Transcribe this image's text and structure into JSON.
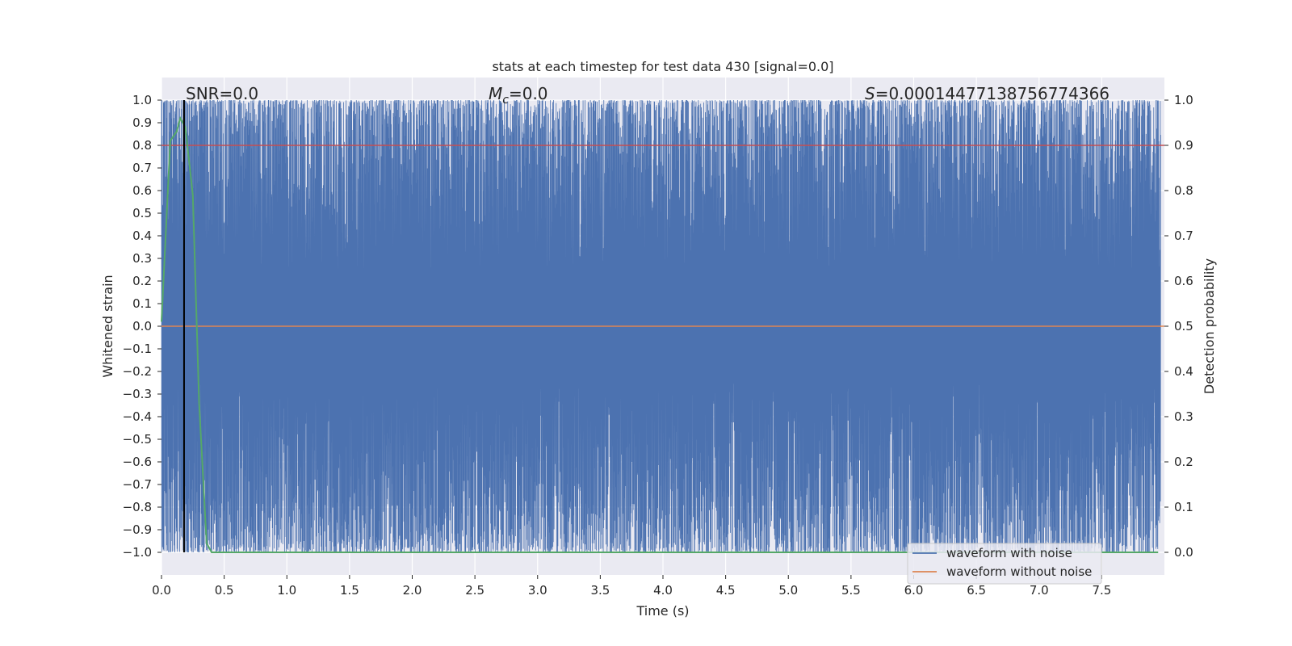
{
  "chart_data": {
    "type": "line",
    "title": "stats at each timestep for test data 430 [signal=0.0]",
    "xlabel": "Time (s)",
    "ylabel": "Whitened strain",
    "y2label": "Detection probability",
    "xlim": [
      0.0,
      8.0
    ],
    "ylim": [
      -1.1,
      1.1
    ],
    "y2lim": [
      -0.05,
      1.05
    ],
    "xticks": [
      "0.0",
      "0.5",
      "1.0",
      "1.5",
      "2.0",
      "2.5",
      "3.0",
      "3.5",
      "4.0",
      "4.5",
      "5.0",
      "5.5",
      "6.0",
      "6.5",
      "7.0",
      "7.5"
    ],
    "yticks": [
      "1.0",
      "0.9",
      "0.8",
      "0.7",
      "0.6",
      "0.5",
      "0.4",
      "0.3",
      "0.2",
      "0.1",
      "0.0",
      "−0.1",
      "−0.2",
      "−0.3",
      "−0.4",
      "−0.5",
      "−0.6",
      "−0.7",
      "−0.8",
      "−0.9",
      "−1.0"
    ],
    "y2ticks": [
      "1.0",
      "0.9",
      "0.8",
      "0.7",
      "0.6",
      "0.5",
      "0.4",
      "0.3",
      "0.2",
      "0.1",
      "0.0"
    ],
    "grid": true,
    "legend_position": "lower-right",
    "annotations": {
      "snr": "SNR=0.0",
      "mc_symbol": "M",
      "mc_sub": "c",
      "mc_value": "=0.0",
      "s_symbol": "S",
      "s_value": "=0.00014477138756774366"
    },
    "series": [
      {
        "name": "waveform with noise",
        "axis": "left",
        "color": "#4c72b0",
        "description_values": "dense noise oscillating between -1.0 and 1.0 over 0-8 s",
        "envelope": {
          "min": -1.0,
          "max": 1.0
        }
      },
      {
        "name": "waveform without noise",
        "axis": "left",
        "color": "#dd8452",
        "x": [
          0.0,
          8.0
        ],
        "y": [
          0.0,
          0.0
        ]
      },
      {
        "axis": "right",
        "color": "#55a868",
        "x": [
          0.0,
          0.07,
          0.12,
          0.15,
          0.19,
          0.25,
          0.3,
          0.36,
          0.4,
          0.8,
          1.5,
          3.0,
          5.0,
          7.0,
          7.95
        ],
        "y": [
          0.51,
          0.91,
          0.93,
          0.96,
          0.94,
          0.79,
          0.33,
          0.02,
          0.0,
          0.0,
          0.0,
          0.0,
          0.0,
          0.0,
          0.0
        ]
      },
      {
        "axis": "right",
        "color": "#c44e52",
        "x": [
          0.0,
          8.0
        ],
        "y": [
          0.9,
          0.9
        ]
      }
    ],
    "vline": {
      "x": 0.18,
      "color": "#000000"
    }
  }
}
